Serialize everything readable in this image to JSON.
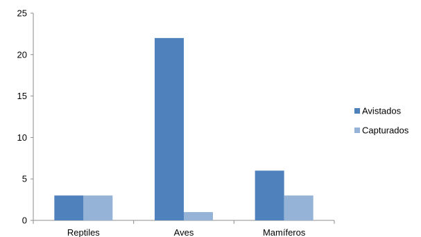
{
  "chart_data": {
    "type": "bar",
    "categories": [
      "Reptiles",
      "Aves",
      "Mamíferos"
    ],
    "series": [
      {
        "name": "Avistados",
        "values": [
          3,
          22,
          6
        ],
        "color": "#4f81bd"
      },
      {
        "name": "Capturados",
        "values": [
          3,
          1,
          3
        ],
        "color": "#95b3d7"
      }
    ],
    "ylim": [
      0,
      25
    ],
    "yticks": [
      0,
      5,
      10,
      15,
      20,
      25
    ],
    "grid": false,
    "legend_position": "right"
  }
}
